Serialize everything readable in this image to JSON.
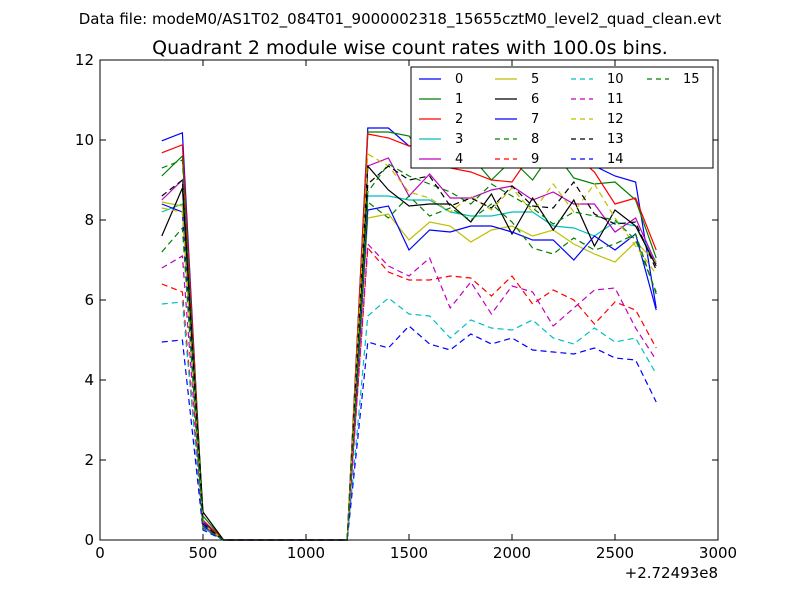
{
  "suptitle": "Data file: modeM0/AS1T02_084T01_9000002318_15655cztM0_level2_quad_clean.evt",
  "chart_data": {
    "type": "line",
    "title": "Quadrant 2 module wise count rates with 100.0s bins.",
    "xlabel": "",
    "ylabel": "",
    "x_offset_label": "+2.72493e8",
    "xlim": [
      0,
      3000
    ],
    "ylim": [
      0,
      12
    ],
    "xticks": [
      0,
      500,
      1000,
      1500,
      2000,
      2500,
      3000
    ],
    "yticks": [
      0,
      2,
      4,
      6,
      8,
      10,
      12
    ],
    "grid": false,
    "legend_position": "top-right",
    "x": [
      300,
      400,
      500,
      600,
      700,
      800,
      900,
      1000,
      1100,
      1200,
      1300,
      1400,
      1500,
      1600,
      1700,
      1800,
      1900,
      2000,
      2100,
      2200,
      2300,
      2400,
      2500,
      2600,
      2700
    ],
    "series": [
      {
        "name": "0",
        "color": "#0000ff",
        "dash": "solid",
        "values": [
          9.98,
          10.18,
          0.45,
          0,
          0,
          0,
          0,
          0,
          0,
          0,
          10.3,
          10.3,
          9.85,
          9.9,
          9.9,
          9.85,
          9.75,
          9.6,
          9.65,
          9.55,
          9.35,
          9.35,
          9.1,
          8.95,
          5.8
        ]
      },
      {
        "name": "1",
        "color": "#008000",
        "dash": "solid",
        "values": [
          9.1,
          9.6,
          0.6,
          0,
          0,
          0,
          0,
          0,
          0,
          0,
          10.2,
          10.2,
          10.1,
          9.4,
          9.55,
          9.6,
          9.0,
          9.5,
          9.0,
          9.75,
          9.05,
          8.9,
          8.95,
          8.5,
          7.05
        ]
      },
      {
        "name": "2",
        "color": "#ff0000",
        "dash": "solid",
        "values": [
          9.68,
          9.88,
          0.5,
          0,
          0,
          0,
          0,
          0,
          0,
          0,
          10.15,
          10.05,
          9.85,
          9.85,
          9.3,
          9.2,
          9.0,
          8.95,
          9.7,
          9.3,
          9.65,
          9.2,
          8.4,
          8.55,
          7.25
        ]
      },
      {
        "name": "3",
        "color": "#00bfbf",
        "dash": "solid",
        "values": [
          8.2,
          8.4,
          0.4,
          0,
          0,
          0,
          0,
          0,
          0,
          0,
          8.6,
          8.6,
          8.5,
          8.5,
          8.2,
          8.1,
          8.1,
          8.2,
          8.2,
          7.85,
          7.8,
          7.6,
          7.95,
          7.85,
          6.95
        ]
      },
      {
        "name": "4",
        "color": "#bf00bf",
        "dash": "solid",
        "values": [
          8.5,
          9.0,
          0.4,
          0,
          0,
          0,
          0,
          0,
          0,
          0,
          9.35,
          9.55,
          8.6,
          9.15,
          8.55,
          8.55,
          8.75,
          8.85,
          8.5,
          8.7,
          8.4,
          8.4,
          7.7,
          8.05,
          6.9
        ]
      },
      {
        "name": "5",
        "color": "#bfbf00",
        "dash": "solid",
        "values": [
          8.45,
          8.35,
          0.4,
          0,
          0,
          0,
          0,
          0,
          0,
          0,
          8.05,
          8.15,
          7.5,
          7.95,
          7.85,
          7.45,
          7.75,
          7.85,
          7.6,
          7.75,
          7.4,
          7.15,
          6.95,
          7.45,
          6.95
        ]
      },
      {
        "name": "6",
        "color": "#000000",
        "dash": "solid",
        "values": [
          7.6,
          8.8,
          0.7,
          0,
          0,
          0,
          0,
          0,
          0,
          0,
          9.35,
          8.75,
          8.35,
          8.4,
          8.4,
          7.95,
          8.65,
          7.65,
          8.55,
          7.75,
          8.5,
          7.35,
          8.25,
          7.85,
          6.85
        ]
      },
      {
        "name": "7",
        "color": "#0000ff",
        "dash": "solid",
        "values": [
          8.4,
          8.2,
          0.35,
          0,
          0,
          0,
          0,
          0,
          0,
          0,
          8.25,
          8.35,
          7.25,
          7.75,
          7.7,
          7.85,
          7.85,
          7.7,
          7.5,
          7.5,
          7.0,
          7.6,
          7.25,
          7.65,
          5.75
        ]
      },
      {
        "name": "8",
        "color": "#008000",
        "dash": "dashed",
        "values": [
          9.3,
          9.5,
          0.4,
          0,
          0,
          0,
          0,
          0,
          0,
          0,
          8.7,
          9.4,
          9.1,
          8.9,
          8.7,
          8.4,
          8.9,
          8.6,
          8.3,
          7.9,
          8.2,
          8.1,
          8.0,
          7.5,
          6.2
        ]
      },
      {
        "name": "9",
        "color": "#ff0000",
        "dash": "dashed",
        "values": [
          6.4,
          6.2,
          0.3,
          0,
          0,
          0,
          0,
          0,
          0,
          0,
          7.3,
          6.7,
          6.5,
          6.5,
          6.6,
          6.55,
          6.1,
          6.6,
          5.9,
          6.25,
          6.0,
          5.4,
          5.95,
          5.75,
          4.8
        ]
      },
      {
        "name": "10",
        "color": "#00bfbf",
        "dash": "dashed",
        "values": [
          5.9,
          5.95,
          0.3,
          0,
          0,
          0,
          0,
          0,
          0,
          0,
          5.6,
          6.05,
          5.65,
          5.6,
          5.05,
          5.5,
          5.3,
          5.25,
          5.5,
          5.05,
          4.9,
          5.3,
          4.95,
          5.05,
          4.15
        ]
      },
      {
        "name": "11",
        "color": "#bf00bf",
        "dash": "dashed",
        "values": [
          6.8,
          7.1,
          0.35,
          0,
          0,
          0,
          0,
          0,
          0,
          0,
          7.4,
          6.85,
          6.6,
          7.05,
          5.8,
          6.45,
          5.65,
          6.35,
          6.2,
          5.35,
          5.8,
          6.25,
          6.3,
          5.3,
          4.5
        ]
      },
      {
        "name": "12",
        "color": "#bfbf00",
        "dash": "dashed",
        "values": [
          8.3,
          8.2,
          0.4,
          0,
          0,
          0,
          0,
          0,
          0,
          0,
          9.65,
          9.35,
          8.7,
          8.55,
          8.2,
          8.6,
          8.25,
          8.8,
          8.2,
          8.9,
          8.2,
          8.9,
          8.05,
          7.35,
          6.65
        ]
      },
      {
        "name": "13",
        "color": "#000000",
        "dash": "dashed",
        "values": [
          8.6,
          9.0,
          0.4,
          0,
          0,
          0,
          0,
          0,
          0,
          0,
          8.9,
          9.35,
          9.0,
          9.1,
          8.35,
          8.55,
          8.3,
          8.85,
          8.35,
          8.3,
          8.95,
          8.15,
          7.9,
          7.95,
          6.75
        ]
      },
      {
        "name": "14",
        "color": "#0000ff",
        "dash": "dashed",
        "values": [
          4.95,
          5.0,
          0.25,
          0,
          0,
          0,
          0,
          0,
          0,
          0,
          4.95,
          4.8,
          5.35,
          4.9,
          4.75,
          5.15,
          4.9,
          5.05,
          4.75,
          4.7,
          4.65,
          4.8,
          4.55,
          4.5,
          3.45
        ]
      },
      {
        "name": "15",
        "color": "#008000",
        "dash": "dashed",
        "values": [
          7.2,
          7.8,
          0.3,
          0,
          0,
          0,
          0,
          0,
          0,
          0,
          8.45,
          8.05,
          8.6,
          8.1,
          8.3,
          8.0,
          8.4,
          7.95,
          7.3,
          7.15,
          7.55,
          7.25,
          7.4,
          7.65,
          6.15
        ]
      }
    ]
  }
}
